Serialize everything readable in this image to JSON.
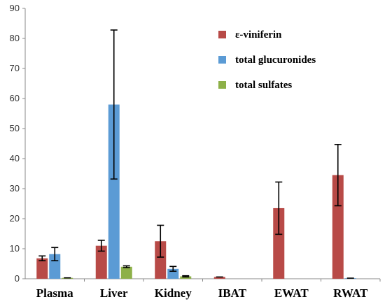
{
  "chart_data": {
    "type": "bar",
    "title": "",
    "xlabel": "",
    "ylabel": "",
    "ylim": [
      0,
      90
    ],
    "yticks": [
      0,
      10,
      20,
      30,
      40,
      50,
      60,
      70,
      80,
      90
    ],
    "grid": false,
    "legend_position": "top-right",
    "categories": [
      "Plasma",
      "Liver",
      "Kidney",
      "IBAT",
      "EWAT",
      "RWAT"
    ],
    "series": [
      {
        "name": "ε-viniferin",
        "color": "#b84a47",
        "values": [
          6.8,
          11,
          12.5,
          0.6,
          23.5,
          34.5
        ],
        "errors": [
          0.8,
          1.8,
          5.3,
          0,
          8.7,
          10.2
        ]
      },
      {
        "name": "total glucuronides",
        "color": "#5b9bd5",
        "values": [
          8.2,
          58,
          3.3,
          0,
          0,
          0.2
        ],
        "errors": [
          2.2,
          24.8,
          0.8,
          0,
          0,
          0
        ]
      },
      {
        "name": "total sulfates",
        "color": "#8db048",
        "values": [
          0.3,
          4,
          0.8,
          0,
          0,
          0
        ],
        "errors": [
          0,
          0.3,
          0.2,
          0,
          0,
          0
        ]
      }
    ]
  }
}
